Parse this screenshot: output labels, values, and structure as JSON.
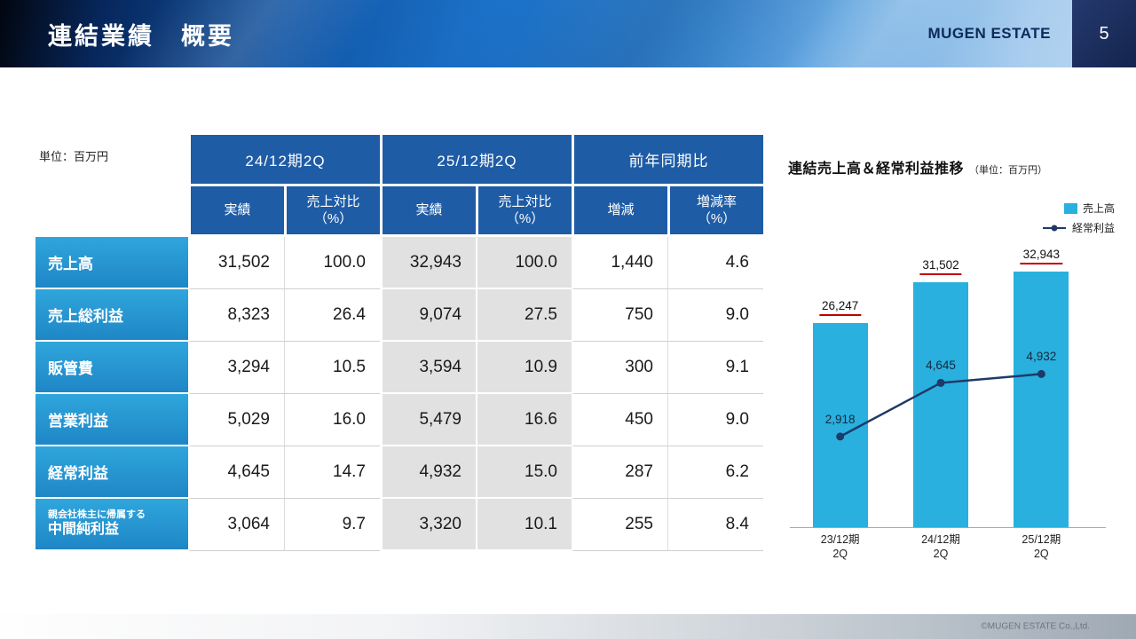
{
  "header": {
    "title": "連結業績　概要",
    "logo_text": "MUGEN ESTATE",
    "page_number": "5"
  },
  "table": {
    "unit_label": "単位：百万円",
    "column_groups": [
      "24/12期2Q",
      "25/12期2Q",
      "前年同期比"
    ],
    "sub_headers": [
      "実績",
      "売上対比\n（%）",
      "実績",
      "売上対比\n（%）",
      "増減",
      "増減率\n（%）"
    ],
    "rows": [
      {
        "label": "売上高",
        "values": [
          "31,502",
          "100.0",
          "32,943",
          "100.0",
          "1,440",
          "4.6"
        ]
      },
      {
        "label": "売上総利益",
        "values": [
          "8,323",
          "26.4",
          "9,074",
          "27.5",
          "750",
          "9.0"
        ]
      },
      {
        "label": "販管費",
        "values": [
          "3,294",
          "10.5",
          "3,594",
          "10.9",
          "300",
          "9.1"
        ]
      },
      {
        "label": "営業利益",
        "values": [
          "5,029",
          "16.0",
          "5,479",
          "16.6",
          "450",
          "9.0"
        ]
      },
      {
        "label": "経常利益",
        "values": [
          "4,645",
          "14.7",
          "4,932",
          "15.0",
          "287",
          "6.2"
        ]
      },
      {
        "label": "中間純利益",
        "label_small": "親会社株主に帰属する",
        "values": [
          "3,064",
          "9.7",
          "3,320",
          "10.1",
          "255",
          "8.4"
        ]
      }
    ]
  },
  "chart": {
    "title": "連結売上高＆経常利益推移",
    "unit_label": "（単位：百万円）"
  },
  "chart_data": {
    "type": "bar",
    "title": "連結売上高＆経常利益推移",
    "unit": "百万円",
    "categories": [
      "23/12期\n2Q",
      "24/12期\n2Q",
      "25/12期\n2Q"
    ],
    "series": [
      {
        "name": "売上高",
        "type": "bar",
        "values": [
          26247,
          31502,
          32943
        ],
        "labels": [
          "26,247",
          "31,502",
          "32,943"
        ],
        "color": "#29b0de"
      },
      {
        "name": "経常利益",
        "type": "line",
        "values": [
          2918,
          4645,
          4932
        ],
        "labels": [
          "2,918",
          "4,645",
          "4,932"
        ],
        "color": "#1d3a68"
      }
    ],
    "bar_axis_max": 36000,
    "line_axis_max": 9000,
    "legend_position": "top-right",
    "grid": false,
    "value_label_underline_color": "#c00000"
  },
  "footer": {
    "copyright": "©MUGEN ESTATE Co.,Ltd."
  },
  "colors": {
    "accent_red": "#c00000",
    "table_header_blue": "#1e5ca6",
    "row_label_gradient_top": "#2fa6dc",
    "row_label_gradient_bottom": "#1f86c6",
    "bar_cyan": "#29b0de",
    "line_navy": "#1d3a68"
  }
}
